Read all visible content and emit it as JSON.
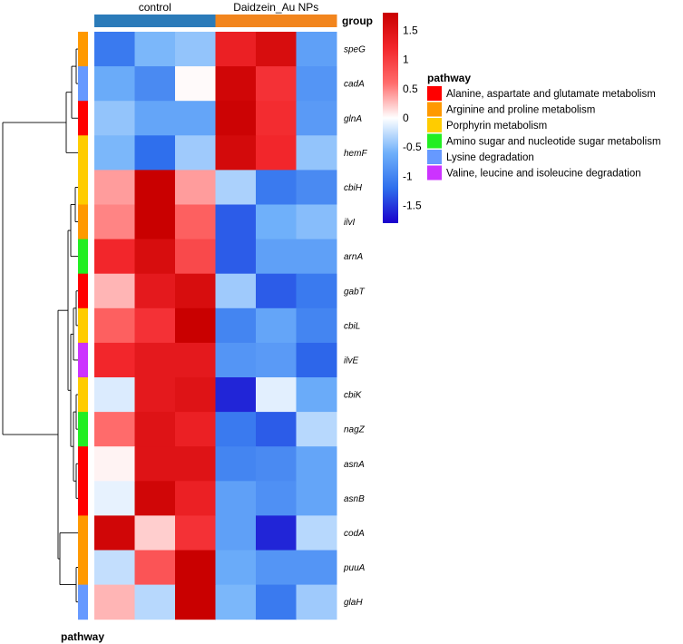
{
  "chart_data": {
    "type": "heatmap",
    "groups": [
      "control",
      "control",
      "control",
      "Daidzein_Au NPs",
      "Daidzein_Au NPs",
      "Daidzein_Au NPs"
    ],
    "group_names": [
      "control",
      "Daidzein_Au NPs"
    ],
    "group_colors": {
      "control": "#2b7bb9",
      "Daidzein_Au NPs": "#f2851d"
    },
    "group_title": "group",
    "pathway_title": "pathway",
    "pathway_bottom_label": "pathway",
    "genes": [
      "speG",
      "cadA",
      "glnA",
      "hemF",
      "cbiH",
      "ilvI",
      "arnA",
      "gabT",
      "cbiL",
      "ilvE",
      "cbiK",
      "nagZ",
      "asnA",
      "asnB",
      "codA",
      "puuA",
      "glaH"
    ],
    "row_pathways": [
      "Arginine and proline metabolism",
      "Lysine degradation",
      "Alanine, aspartate and glutamate metabolism",
      "Porphyrin metabolism",
      "Porphyrin metabolism",
      "Arginine and proline metabolism",
      "Amino sugar and nucleotide sugar metabolism",
      "Alanine, aspartate and glutamate metabolism",
      "Porphyrin metabolism",
      "Valine, leucine and isoleucine degradation",
      "Porphyrin metabolism",
      "Amino sugar and nucleotide sugar metabolism",
      "Alanine, aspartate and glutamate metabolism",
      "Alanine, aspartate and glutamate metabolism",
      "Arginine and proline metabolism",
      "Arginine and proline metabolism",
      "Lysine degradation"
    ],
    "values": [
      [
        -1.1,
        -0.55,
        -0.45,
        1.3,
        1.6,
        -0.75
      ],
      [
        -0.65,
        -0.95,
        0.02,
        1.7,
        1.1,
        -0.85
      ],
      [
        -0.45,
        -0.7,
        -0.7,
        1.75,
        1.15,
        -0.8
      ],
      [
        -0.55,
        -1.2,
        -0.4,
        1.65,
        1.2,
        -0.45
      ],
      [
        0.4,
        1.8,
        0.4,
        -0.35,
        -1.1,
        -0.95
      ],
      [
        0.5,
        1.8,
        0.7,
        -1.3,
        -0.6,
        -0.5
      ],
      [
        1.2,
        1.6,
        0.9,
        -1.3,
        -0.75,
        -0.75
      ],
      [
        0.3,
        1.4,
        1.6,
        -0.4,
        -1.3,
        -1.1
      ],
      [
        0.7,
        1.1,
        1.8,
        -1.0,
        -0.7,
        -1.0
      ],
      [
        1.2,
        1.4,
        1.4,
        -0.85,
        -0.8,
        -1.25
      ],
      [
        -0.15,
        1.4,
        1.5,
        -1.6,
        -0.12,
        -0.65
      ],
      [
        0.6,
        1.5,
        1.3,
        -1.1,
        -1.3,
        -0.3
      ],
      [
        0.05,
        1.5,
        1.5,
        -1.0,
        -0.95,
        -0.7
      ],
      [
        -0.1,
        1.7,
        1.3,
        -0.75,
        -0.9,
        -0.7
      ],
      [
        1.7,
        0.2,
        1.1,
        -0.75,
        -1.6,
        -0.3
      ],
      [
        -0.25,
        0.8,
        1.95,
        -0.65,
        -0.85,
        -0.85
      ],
      [
        0.3,
        -0.3,
        1.95,
        -0.55,
        -1.1,
        -0.4
      ]
    ],
    "color_scale": {
      "stops": [
        {
          "value": -1.8,
          "color": "#1a00cc"
        },
        {
          "value": -1.2,
          "color": "#2f6fed"
        },
        {
          "value": -0.6,
          "color": "#6fb0fa"
        },
        {
          "value": 0.0,
          "color": "#ffffff"
        },
        {
          "value": 0.6,
          "color": "#ff6b6b"
        },
        {
          "value": 1.2,
          "color": "#f2262b"
        },
        {
          "value": 1.8,
          "color": "#c90000"
        }
      ],
      "range": [
        -1.8,
        1.8
      ],
      "ticks": [
        "1.5",
        "1",
        "0.5",
        "0",
        "-0.5",
        "-1",
        "-1.5"
      ],
      "tick_values": [
        1.5,
        1,
        0.5,
        0,
        -0.5,
        -1,
        -1.5
      ]
    },
    "pathway_legend": [
      {
        "name": "Alanine, aspartate and glutamate metabolism",
        "color": "#ff0000"
      },
      {
        "name": "Arginine and proline metabolism",
        "color": "#ff9900"
      },
      {
        "name": "Porphyrin metabolism",
        "color": "#ffcc00"
      },
      {
        "name": "Amino sugar and nucleotide sugar metabolism",
        "color": "#22ee22"
      },
      {
        "name": "Lysine degradation",
        "color": "#6699ff"
      },
      {
        "name": "Valine, leucine and isoleucine degradation",
        "color": "#cc33ff"
      }
    ]
  }
}
